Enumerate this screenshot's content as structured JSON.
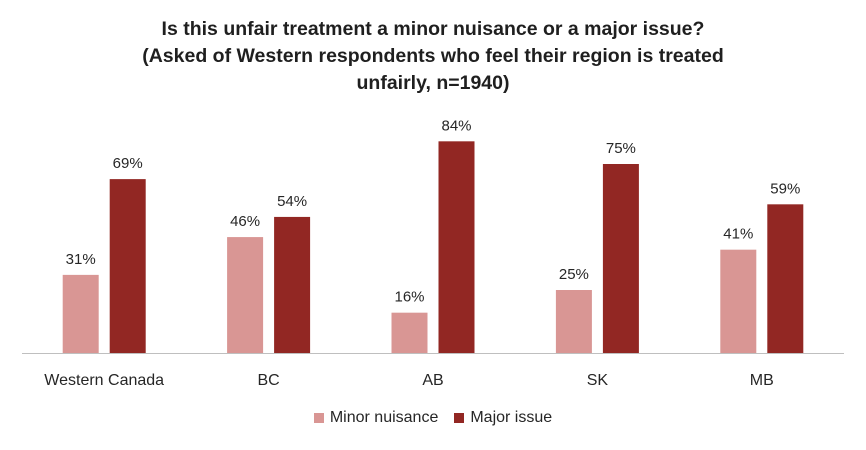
{
  "chart_data": {
    "type": "bar",
    "title_lines": [
      "Is this unfair treatment a minor nuisance or a major issue?",
      "(Asked of Western respondents who feel their region is treated",
      "unfairly, n=1940)"
    ],
    "categories": [
      "Western Canada",
      "BC",
      "AB",
      "SK",
      "MB"
    ],
    "series": [
      {
        "name": "Minor nuisance",
        "values": [
          31,
          46,
          16,
          25,
          41
        ],
        "color": "#d99694"
      },
      {
        "name": "Major issue",
        "values": [
          69,
          54,
          84,
          75,
          59
        ],
        "color": "#922723"
      }
    ],
    "value_suffix": "%",
    "ylim": [
      0,
      100
    ],
    "grid": false,
    "legend_position": "bottom"
  }
}
